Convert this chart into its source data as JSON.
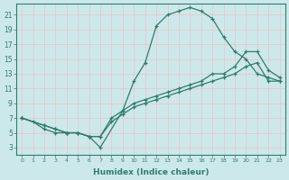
{
  "xlabel": "Humidex (Indice chaleur)",
  "xlim": [
    -0.5,
    23.5
  ],
  "ylim": [
    2,
    22.5
  ],
  "xticks": [
    0,
    1,
    2,
    3,
    4,
    5,
    6,
    7,
    8,
    9,
    10,
    11,
    12,
    13,
    14,
    15,
    16,
    17,
    18,
    19,
    20,
    21,
    22,
    23
  ],
  "yticks": [
    3,
    5,
    7,
    9,
    11,
    13,
    15,
    17,
    19,
    21
  ],
  "bg_color": "#cde8eb",
  "grid_color": "#e8c8c8",
  "line_color": "#2e7d6e",
  "line1_x": [
    0,
    1,
    2,
    3,
    4,
    5,
    6,
    7,
    9,
    10,
    11,
    12,
    13,
    14,
    15,
    16,
    17,
    18,
    19,
    20,
    21,
    22,
    23
  ],
  "line1_y": [
    7,
    6.5,
    5.5,
    5,
    5,
    5,
    4.5,
    3,
    8,
    12,
    14.5,
    19.5,
    21,
    21.5,
    22,
    21.5,
    20.5,
    18,
    16,
    15,
    13,
    12.5,
    12
  ],
  "line2_x": [
    0,
    2,
    3,
    4,
    5,
    6,
    7,
    8,
    9,
    10,
    11,
    12,
    13,
    14,
    15,
    16,
    17,
    18,
    19,
    20,
    21,
    22,
    23
  ],
  "line2_y": [
    7,
    6,
    5.5,
    5,
    5,
    4.5,
    4.5,
    7,
    8,
    9,
    9.5,
    10,
    10.5,
    11,
    11.5,
    12,
    13,
    13,
    14,
    16,
    16,
    13.5,
    12.5
  ],
  "line3_x": [
    0,
    2,
    3,
    4,
    5,
    6,
    7,
    8,
    9,
    10,
    11,
    12,
    13,
    14,
    15,
    16,
    17,
    18,
    19,
    20,
    21,
    22,
    23
  ],
  "line3_y": [
    7,
    6,
    5.5,
    5,
    5,
    4.5,
    4.5,
    6.5,
    7.5,
    8.5,
    9,
    9.5,
    10,
    10.5,
    11,
    11.5,
    12,
    12.5,
    13,
    14,
    14.5,
    12,
    12
  ]
}
